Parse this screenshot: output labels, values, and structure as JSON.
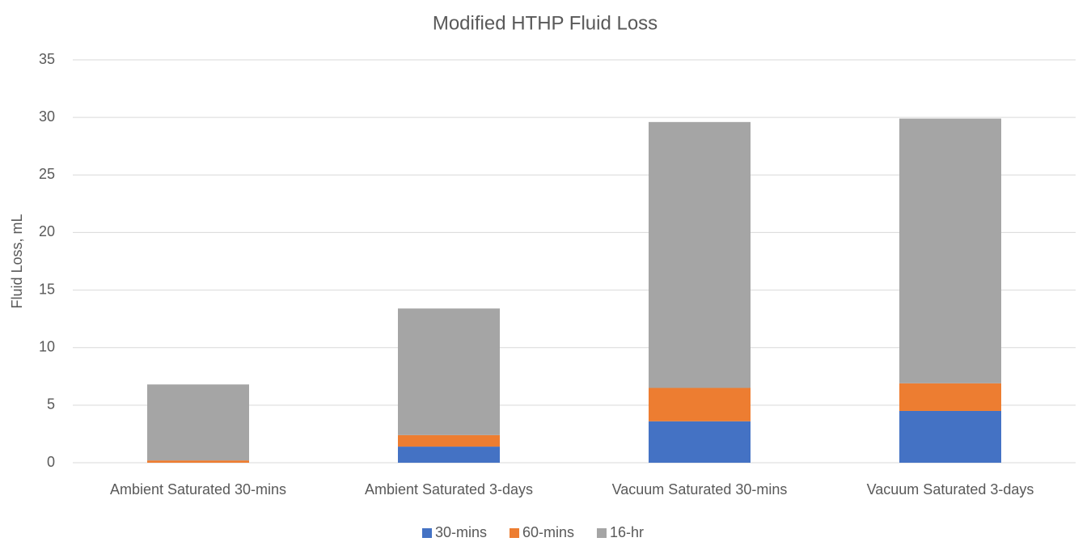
{
  "chart_data": {
    "type": "stacked_bar",
    "title": "Modified HTHP Fluid Loss",
    "y_label": "Fluid Loss, mL",
    "categories": [
      "Ambient Saturated 30-mins",
      "Ambient Saturated 3-days",
      "Vacuum Saturated 30-mins",
      "Vacuum Saturated 3-days"
    ],
    "series": [
      {
        "name": "30-mins",
        "color": "#4472c4",
        "values": [
          0,
          1.4,
          3.6,
          4.5
        ]
      },
      {
        "name": "60-mins",
        "color": "#ed7d31",
        "values": [
          0.2,
          1.0,
          2.9,
          2.4
        ]
      },
      {
        "name": "16-hr",
        "color": "#a5a5a5",
        "values": [
          6.6,
          11.0,
          23.1,
          23.0
        ]
      }
    ],
    "ylim": [
      0,
      35
    ],
    "yticks": [
      0,
      5,
      10,
      15,
      20,
      25,
      30,
      35
    ],
    "grid": true,
    "legend": "bottom"
  }
}
